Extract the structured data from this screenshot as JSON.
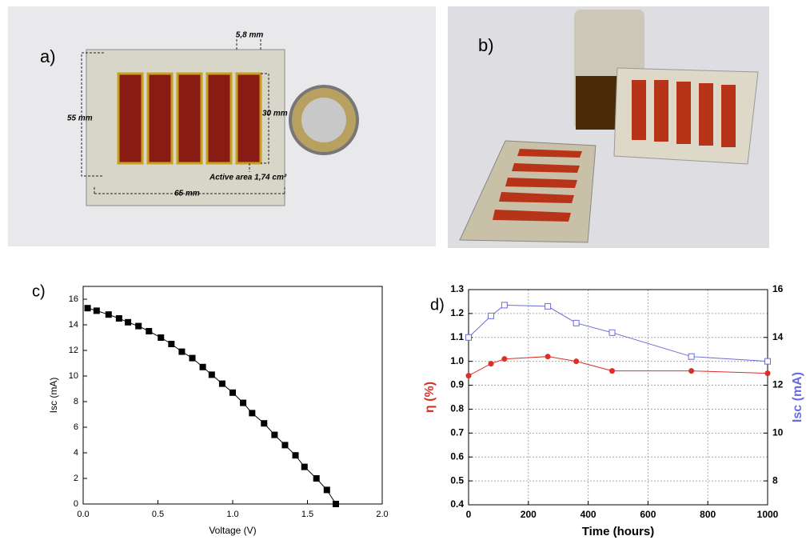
{
  "photos": [
    {
      "label": "a)",
      "annotations": [
        "5,8 mm",
        "55 mm",
        "30 mm",
        "Active area 1,74 cm²",
        "65 mm"
      ]
    },
    {
      "label": "b)"
    }
  ],
  "chart_data": [
    {
      "type": "line",
      "label": "c)",
      "xlabel": "Voltage (V)",
      "ylabel": "Isc (mA)",
      "x": [
        0.03,
        0.09,
        0.17,
        0.24,
        0.3,
        0.37,
        0.44,
        0.52,
        0.59,
        0.66,
        0.73,
        0.8,
        0.86,
        0.93,
        1.0,
        1.07,
        1.13,
        1.21,
        1.28,
        1.35,
        1.42,
        1.48,
        1.56,
        1.63,
        1.69
      ],
      "series": [
        {
          "color": "#000000",
          "marker": "square",
          "values": [
            15.3,
            15.1,
            14.8,
            14.5,
            14.2,
            13.9,
            13.5,
            13.0,
            12.5,
            11.9,
            11.4,
            10.7,
            10.1,
            9.4,
            8.7,
            7.9,
            7.1,
            6.3,
            5.4,
            4.6,
            3.8,
            2.9,
            2.0,
            1.1,
            0.0
          ]
        }
      ],
      "xlim": [
        0,
        2
      ],
      "xticks": [
        {
          "value": 0,
          "label": "0.0"
        },
        0.5,
        {
          "value": 1,
          "label": "1.0"
        },
        1.5,
        {
          "value": 2,
          "label": "2.0"
        }
      ],
      "ylim": [
        0,
        17
      ],
      "yticks": [
        0,
        2,
        4,
        6,
        8,
        10,
        12,
        14,
        16
      ],
      "grid": false
    },
    {
      "type": "line",
      "label": "d)",
      "xlabel": "Time (hours)",
      "ylabel": "η (%)",
      "y2label": "Isc (mA)",
      "x": [
        0,
        75,
        120,
        265,
        360,
        480,
        745,
        1000
      ],
      "series": [
        {
          "color": "#d9302b",
          "marker": "circle",
          "values": [
            0.94,
            0.99,
            1.01,
            1.02,
            1.0,
            0.96,
            0.96,
            0.95
          ]
        },
        {
          "color": "#6b6bdc",
          "marker": "open-square",
          "axis": "y2",
          "values": [
            14.0,
            14.9,
            15.35,
            15.3,
            14.6,
            14.2,
            13.2,
            13.0
          ]
        }
      ],
      "xlim": [
        0,
        1000
      ],
      "xticks": [
        0,
        200,
        400,
        600,
        800,
        1000
      ],
      "ylim": [
        0.4,
        1.3
      ],
      "yticks": [
        0.4,
        0.5,
        0.6,
        0.7,
        0.8,
        0.9,
        {
          "value": 1,
          "label": "1.0"
        },
        1.1,
        1.2,
        1.3
      ],
      "y2lim": [
        7,
        16
      ],
      "y2ticks": [
        8,
        10,
        12,
        14,
        16
      ],
      "grid": true
    }
  ]
}
